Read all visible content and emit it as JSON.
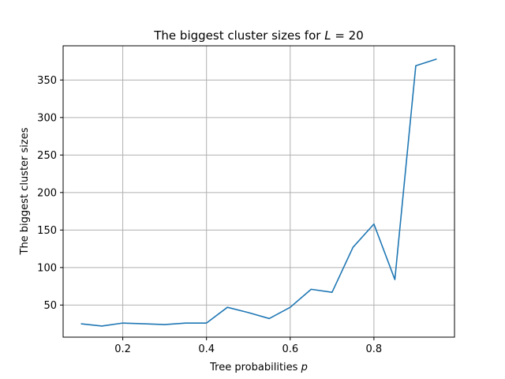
{
  "chart_data": {
    "type": "line",
    "title": "The biggest cluster sizes for L = 20",
    "title_parts": {
      "prefix": "The biggest cluster sizes for ",
      "var": "L",
      "suffix": " = 20"
    },
    "xlabel": "Tree probabilities p",
    "xlabel_parts": {
      "prefix": "Tree probabilities ",
      "var": "p"
    },
    "ylabel": "The biggest cluster sizes",
    "xlim": [
      0.0575,
      0.9925
    ],
    "ylim": [
      7.2,
      395.6
    ],
    "xticks": [
      0.2,
      0.4,
      0.6,
      0.8
    ],
    "xtick_labels": [
      "0.2",
      "0.4",
      "0.6",
      "0.8"
    ],
    "yticks": [
      50,
      100,
      150,
      200,
      250,
      300,
      350
    ],
    "ytick_labels": [
      "50",
      "100",
      "150",
      "200",
      "250",
      "300",
      "350"
    ],
    "grid": true,
    "series": [
      {
        "color": "#1f77b4",
        "x": [
          0.1,
          0.15,
          0.2,
          0.25,
          0.3,
          0.35,
          0.4,
          0.45,
          0.5,
          0.55,
          0.6,
          0.65,
          0.7,
          0.75,
          0.8,
          0.85,
          0.9,
          0.95
        ],
        "y": [
          25,
          22,
          26,
          25,
          24,
          26,
          26,
          47,
          40,
          32,
          47,
          71,
          67,
          127,
          158,
          84,
          369,
          378
        ]
      }
    ]
  }
}
